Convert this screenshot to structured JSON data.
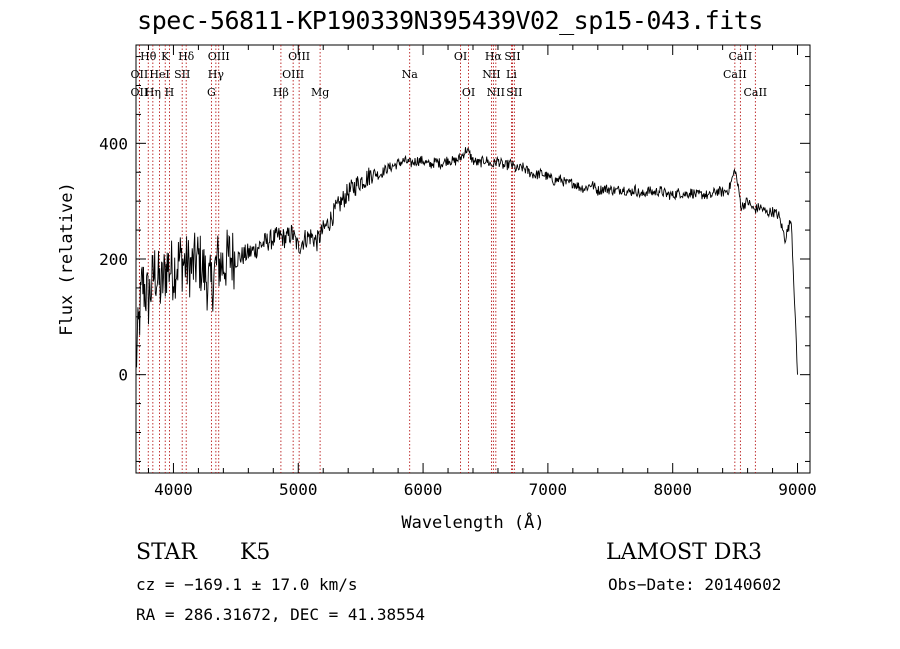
{
  "chart_data": {
    "type": "line",
    "title": "spec-56811-KP190339N395439V02_sp15-043.fits",
    "xlabel": "Wavelength (Å)",
    "ylabel": "Flux (relative)",
    "xlim": [
      3700,
      9100
    ],
    "ylim": [
      -170,
      570
    ],
    "xticks": [
      4000,
      5000,
      6000,
      7000,
      8000,
      9000
    ],
    "xtick_labels": [
      "4000",
      "5000",
      "6000",
      "7000",
      "8000",
      "9000"
    ],
    "yticks": [
      0,
      200,
      400
    ],
    "ytick_labels": [
      "0",
      "200",
      "400"
    ],
    "series": [
      {
        "name": "flux",
        "x": [
          3700,
          3750,
          3800,
          3850,
          3900,
          3950,
          4000,
          4050,
          4100,
          4150,
          4200,
          4250,
          4300,
          4350,
          4400,
          4450,
          4500,
          4550,
          4600,
          4650,
          4700,
          4750,
          4800,
          4850,
          4900,
          4950,
          5000,
          5050,
          5100,
          5150,
          5200,
          5250,
          5300,
          5350,
          5400,
          5450,
          5500,
          5550,
          5600,
          5650,
          5700,
          5750,
          5800,
          5850,
          5900,
          5950,
          6000,
          6050,
          6100,
          6150,
          6200,
          6250,
          6300,
          6350,
          6400,
          6450,
          6500,
          6550,
          6600,
          6650,
          6700,
          6750,
          6800,
          6850,
          6900,
          6950,
          7000,
          7050,
          7100,
          7150,
          7200,
          7250,
          7300,
          7350,
          7400,
          7450,
          7500,
          7550,
          7600,
          7650,
          7700,
          7750,
          7800,
          7850,
          7900,
          7950,
          8000,
          8050,
          8100,
          8150,
          8200,
          8250,
          8300,
          8350,
          8400,
          8450,
          8500,
          8550,
          8600,
          8650,
          8700,
          8750,
          8800,
          8850,
          8900,
          8950,
          9000
        ],
        "y": [
          20,
          160,
          130,
          180,
          150,
          190,
          180,
          200,
          190,
          185,
          200,
          175,
          150,
          195,
          190,
          205,
          200,
          205,
          210,
          215,
          225,
          230,
          235,
          240,
          235,
          245,
          220,
          235,
          240,
          230,
          250,
          265,
          285,
          300,
          315,
          325,
          335,
          340,
          350,
          345,
          355,
          360,
          365,
          370,
          365,
          370,
          370,
          362,
          368,
          365,
          372,
          368,
          375,
          390,
          370,
          365,
          372,
          362,
          370,
          360,
          365,
          355,
          358,
          350,
          345,
          348,
          342,
          335,
          338,
          330,
          332,
          325,
          322,
          330,
          318,
          322,
          320,
          318,
          322,
          315,
          320,
          310,
          318,
          315,
          318,
          312,
          310,
          315,
          312,
          315,
          310,
          312,
          308,
          318,
          315,
          320,
          355,
          290,
          300,
          285,
          290,
          280,
          282,
          275,
          235,
          270,
          0
        ]
      }
    ],
    "lines_top": [
      {
        "label": "Hθ",
        "wave": 3798,
        "row": 1
      },
      {
        "label": "K",
        "wave": 3934,
        "row": 1
      },
      {
        "label": "Hδ",
        "wave": 4102,
        "row": 1
      },
      {
        "label": "OIII",
        "wave": 4363,
        "row": 1
      },
      {
        "label": "OII",
        "wave": 3727,
        "row": 2
      },
      {
        "label": "HeI",
        "wave": 3889,
        "row": 2
      },
      {
        "label": "SII",
        "wave": 4070,
        "row": 2
      },
      {
        "label": "Hγ",
        "wave": 4340,
        "row": 2
      },
      {
        "label": "OII",
        "wave": 3727,
        "row": 3
      },
      {
        "label": "Hη",
        "wave": 3835,
        "row": 3
      },
      {
        "label": "H",
        "wave": 3968,
        "row": 3
      },
      {
        "label": "G",
        "wave": 4304,
        "row": 3
      },
      {
        "label": "OIII",
        "wave": 5007,
        "row": 1
      },
      {
        "label": "OIII",
        "wave": 4959,
        "row": 2
      },
      {
        "label": "Hβ",
        "wave": 4861,
        "row": 3
      },
      {
        "label": "Mg",
        "wave": 5175,
        "row": 3
      },
      {
        "label": "Na",
        "wave": 5893,
        "row": 2
      },
      {
        "label": "OI",
        "wave": 6300,
        "row": 1
      },
      {
        "label": "OI",
        "wave": 6364,
        "row": 3
      },
      {
        "label": "Hα",
        "wave": 6563,
        "row": 1
      },
      {
        "label": "SII",
        "wave": 6716,
        "row": 1
      },
      {
        "label": "NII",
        "wave": 6548,
        "row": 2
      },
      {
        "label": "Li",
        "wave": 6708,
        "row": 2
      },
      {
        "label": "NII",
        "wave": 6583,
        "row": 3
      },
      {
        "label": "SII",
        "wave": 6731,
        "row": 3
      },
      {
        "label": "CaII",
        "wave": 8542,
        "row": 1
      },
      {
        "label": "CaII",
        "wave": 8498,
        "row": 2
      },
      {
        "label": "CaII",
        "wave": 8662,
        "row": 3
      }
    ]
  },
  "info": {
    "class": "STAR",
    "subclass": "K5",
    "survey": "LAMOST DR3",
    "cz": "cz = −169.1 ± 17.0 km/s",
    "obs_date": "Obs−Date: 20140602",
    "radec": "RA = 286.31672, DEC =  41.38554"
  }
}
